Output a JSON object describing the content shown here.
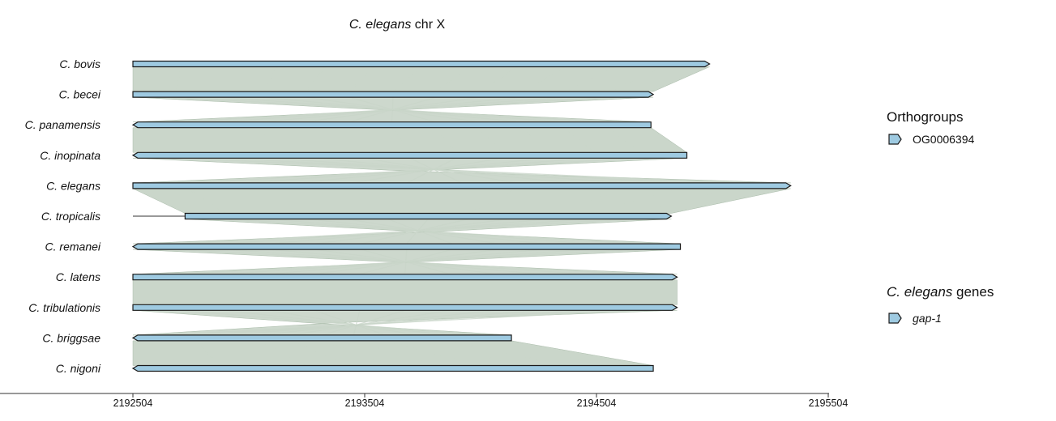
{
  "title": {
    "species": "C. elegans",
    "rest": " chr X"
  },
  "axis": {
    "min": 2192504,
    "max": 2195504,
    "ticks": [
      "2192504",
      "2193504",
      "2194504",
      "2195504"
    ]
  },
  "tracks": [
    {
      "name": "C. bovis",
      "strand": "+",
      "start": 2192504,
      "end": 2194992
    },
    {
      "name": "C. becei",
      "strand": "+",
      "start": 2192504,
      "end": 2194749
    },
    {
      "name": "C. panamensis",
      "strand": "-",
      "start": 2192504,
      "end": 2194739
    },
    {
      "name": "C. inopinata",
      "strand": "-",
      "start": 2192504,
      "end": 2194894
    },
    {
      "name": "C. elegans",
      "strand": "+",
      "start": 2192504,
      "end": 2195342
    },
    {
      "name": "C. tropicalis",
      "strand": "+",
      "start": 2192729,
      "end": 2194827,
      "intron_start": 2192504
    },
    {
      "name": "C. remanei",
      "strand": "-",
      "start": 2192504,
      "end": 2194866
    },
    {
      "name": "C. latens",
      "strand": "+",
      "start": 2192504,
      "end": 2194852
    },
    {
      "name": "C. tribulationis",
      "strand": "+",
      "start": 2192504,
      "end": 2194852
    },
    {
      "name": "C. briggsae",
      "strand": "-",
      "start": 2192504,
      "end": 2194137
    },
    {
      "name": "C. nigoni",
      "strand": "-",
      "start": 2192504,
      "end": 2194749
    }
  ],
  "legend": {
    "orthogroups": {
      "title": "Orthogroups",
      "items": [
        "OG0006394"
      ]
    },
    "genes": {
      "title_species": "C. elegans",
      "title_rest": " genes",
      "items": [
        "gap-1"
      ]
    }
  },
  "colors": {
    "gene_fill": "#9ecae1",
    "gene_stroke": "#1a1a1a",
    "synteny": "#b8c8b8",
    "axis": "#333333"
  }
}
